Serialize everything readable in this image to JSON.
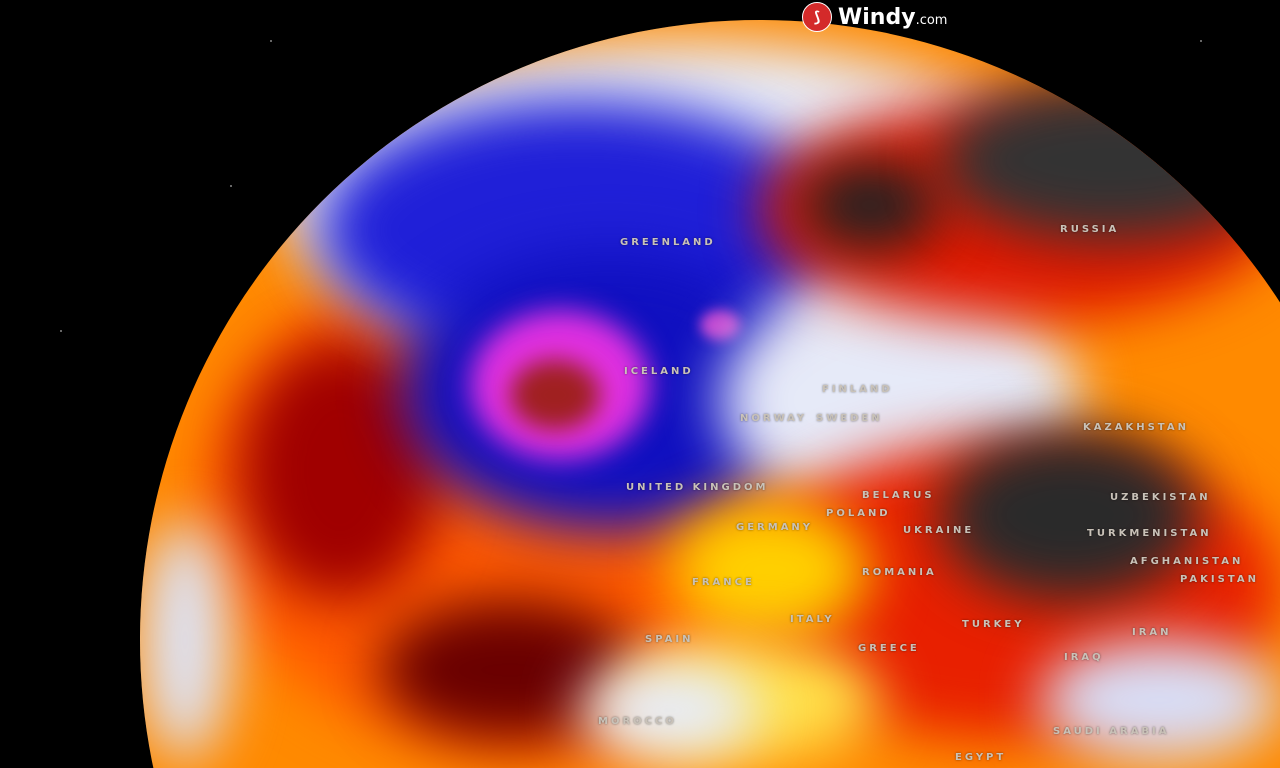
{
  "brand": {
    "name": "Windy",
    "suffix": ".com"
  },
  "labels": {
    "greenland": "GREENLAND",
    "iceland": "ICELAND",
    "finland": "FINLAND",
    "norway": "NORWAY",
    "sweden": "SWEDEN",
    "united_kingdom": "UNITED KINGDOM",
    "russia": "RUSSIA",
    "belarus": "BELARUS",
    "poland": "POLAND",
    "germany": "GERMANY",
    "ukraine": "UKRAINE",
    "romania": "ROMANIA",
    "france": "FRANCE",
    "spain": "SPAIN",
    "italy": "ITALY",
    "greece": "GREECE",
    "turkey": "TURKEY",
    "iraq": "IRAQ",
    "iran": "IRAN",
    "saudi_arabia": "SAUDI ARABIA",
    "egypt": "EGYPT",
    "morocco": "MOROCCO",
    "kazakhstan": "KAZAKHSTAN",
    "uzbekistan": "UZBEKISTAN",
    "turkmenistan": "TURKMENISTAN",
    "afghanistan": "AFGHANISTAN",
    "pakistan": "PAKISTAN"
  },
  "colors": {
    "cold": "#1a1ad8",
    "very_cold": "#d838e0",
    "neutral": "#e8ecf8",
    "warm": "#ffd200",
    "hot": "#e81800",
    "very_hot": "#2a2a2a"
  }
}
